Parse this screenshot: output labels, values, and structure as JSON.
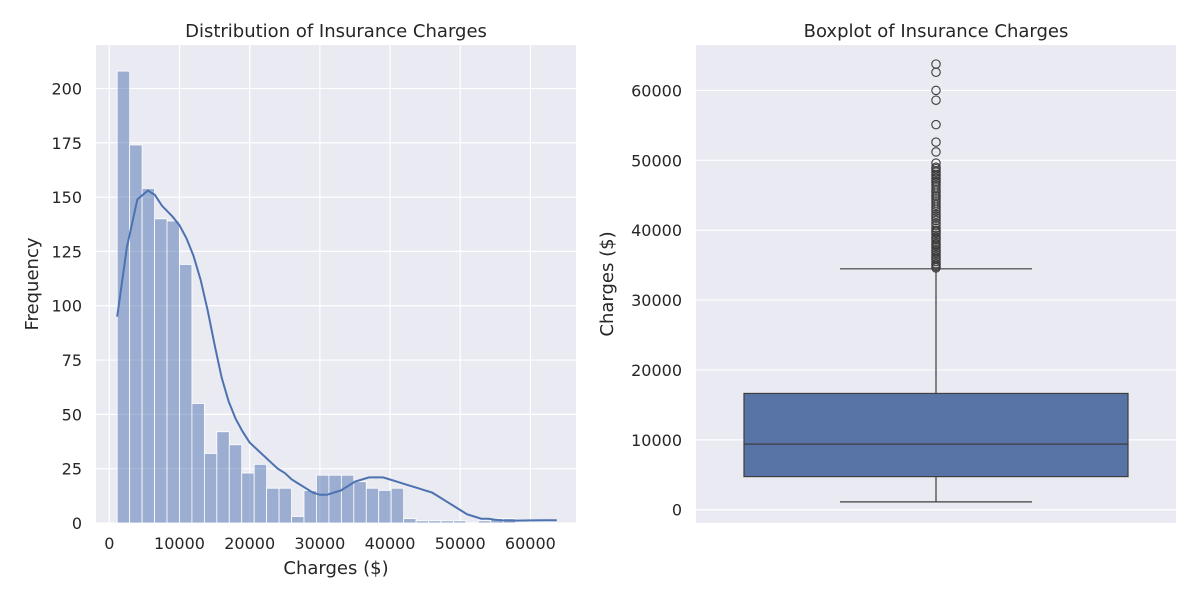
{
  "colors": {
    "background": "#eaeaf2",
    "grid": "#ffffff",
    "hist_fill": "#4c72b0",
    "kde_line": "#4c72b0",
    "box_fill": "#5874a6",
    "box_line": "#3d3d3d"
  },
  "chart_data": [
    {
      "type": "bar",
      "subtype": "histogram",
      "title": "Distribution of Insurance Charges",
      "xlabel": "Charges ($)",
      "ylabel": "Frequency",
      "xlim": [
        -1900,
        66500
      ],
      "ylim": [
        0,
        220
      ],
      "xticks": [
        0,
        10000,
        20000,
        30000,
        40000,
        50000,
        60000
      ],
      "yticks": [
        0,
        25,
        50,
        75,
        100,
        125,
        150,
        175,
        200
      ],
      "grid": true,
      "bin_start": 1121,
      "bin_width": 1774.6,
      "counts": [
        208,
        174,
        154,
        140,
        139,
        119,
        55,
        32,
        42,
        36,
        23,
        27,
        16,
        16,
        3,
        15,
        22,
        22,
        22,
        19,
        16,
        15,
        16,
        2,
        1,
        1,
        1,
        1,
        0,
        1,
        2,
        2
      ],
      "kde": {
        "x": [
          1121,
          2500,
          4000,
          5500,
          6500,
          7500,
          9000,
          10000,
          11000,
          12000,
          13000,
          14000,
          15000,
          16000,
          17000,
          18000,
          19000,
          20000,
          21000,
          22000,
          23000,
          24000,
          25000,
          26000,
          27000,
          28000,
          29000,
          30000,
          31000,
          32000,
          33000,
          34000,
          35000,
          36000,
          37000,
          38000,
          39000,
          40000,
          41000,
          42000,
          43000,
          44000,
          45000,
          46000,
          47000,
          48000,
          49000,
          50000,
          51000,
          52000,
          53000,
          54000,
          55000,
          56000,
          58000,
          60000,
          62000,
          63770
        ],
        "y": [
          95,
          127,
          149,
          153,
          151,
          146,
          141,
          137,
          131,
          123,
          112,
          98,
          82,
          67,
          56,
          48,
          42,
          37,
          34,
          31,
          28,
          25,
          23,
          20,
          18,
          16,
          14,
          13,
          13,
          14,
          15,
          17,
          19,
          20,
          21,
          21,
          21,
          20,
          19,
          18,
          17,
          16,
          15,
          14,
          12,
          10,
          8,
          6,
          4,
          3,
          2,
          2,
          1.5,
          1.2,
          1.1,
          1.2,
          1.3,
          1.3
        ]
      }
    },
    {
      "type": "box",
      "title": "Boxplot of Insurance Charges",
      "xlabel": "",
      "ylabel": "Charges ($)",
      "ylim": [
        -1900,
        66500
      ],
      "yticks": [
        0,
        10000,
        20000,
        30000,
        40000,
        50000,
        60000
      ],
      "grid": true,
      "whisker_low": 1121,
      "q1": 4740,
      "median": 9382,
      "q3": 16640,
      "whisker_high": 34472,
      "outliers": [
        34600,
        34800,
        35000,
        35200,
        35500,
        35800,
        36000,
        36200,
        36500,
        36800,
        37000,
        37200,
        37500,
        37800,
        38000,
        38300,
        38600,
        38800,
        39000,
        39300,
        39600,
        39800,
        40000,
        40300,
        40700,
        41000,
        41400,
        41700,
        42000,
        42300,
        42700,
        43000,
        43300,
        43600,
        43900,
        44200,
        44500,
        44800,
        45000,
        45300,
        45600,
        45900,
        46200,
        46500,
        46800,
        47000,
        47300,
        47500,
        47800,
        48000,
        48300,
        48500,
        48800,
        49000,
        49600,
        51200,
        52600,
        55100,
        58600,
        60000,
        62600,
        63770
      ]
    }
  ]
}
